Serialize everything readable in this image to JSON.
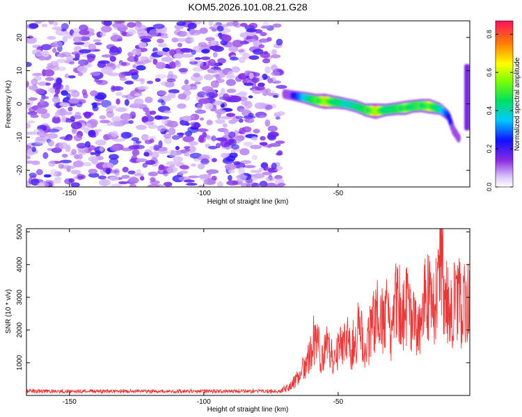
{
  "chart_data": [
    {
      "type": "heatmap",
      "title": "KOM5.2026.101.08.21.G28",
      "xlabel": "Height of straight line (km)",
      "ylabel": "Frequency (Hz)",
      "xlim": [
        -166,
        -1
      ],
      "ylim": [
        -25,
        25
      ],
      "x_ticks": [
        -150,
        -100,
        -50
      ],
      "y_ticks": [
        -20,
        -10,
        0,
        10,
        20
      ],
      "colorbar": {
        "label": "Normalized spectral amplitude",
        "range": [
          0,
          0.87
        ],
        "ticks": [
          "0.0",
          "0.2",
          "0.4",
          "0.6",
          "0.8"
        ],
        "tick_values": [
          0.0,
          0.2,
          0.4,
          0.6,
          0.8
        ]
      },
      "noise_region": {
        "x_range": [
          -166,
          -71
        ],
        "freq_range": [
          -25,
          25
        ],
        "amplitude_range": [
          0.05,
          0.22
        ]
      },
      "signal_track": {
        "points": [
          {
            "x": -70,
            "f": 3.0,
            "a": 0.2
          },
          {
            "x": -66,
            "f": 2.4,
            "a": 0.28
          },
          {
            "x": -62,
            "f": 1.8,
            "a": 0.45
          },
          {
            "x": -58,
            "f": 1.0,
            "a": 0.6
          },
          {
            "x": -55,
            "f": 0.8,
            "a": 0.82
          },
          {
            "x": -51,
            "f": 0.5,
            "a": 0.55
          },
          {
            "x": -47,
            "f": 0.0,
            "a": 0.45
          },
          {
            "x": -43,
            "f": -0.8,
            "a": 0.5
          },
          {
            "x": -40,
            "f": -1.8,
            "a": 0.55
          },
          {
            "x": -36,
            "f": -2.2,
            "a": 0.85
          },
          {
            "x": -32,
            "f": -1.8,
            "a": 0.5
          },
          {
            "x": -28,
            "f": -1.4,
            "a": 0.55
          },
          {
            "x": -25,
            "f": -1.2,
            "a": 0.7
          },
          {
            "x": -22,
            "f": -0.7,
            "a": 0.55
          },
          {
            "x": -19,
            "f": -0.5,
            "a": 0.6
          },
          {
            "x": -16,
            "f": -0.7,
            "a": 0.75
          },
          {
            "x": -12,
            "f": -1.5,
            "a": 0.45
          },
          {
            "x": -9,
            "f": -3.5,
            "a": 0.3
          },
          {
            "x": -7,
            "f": -8.0,
            "a": 0.22
          },
          {
            "x": -5,
            "f": -10.5,
            "a": 0.16
          }
        ],
        "edge_patch": {
          "x": -2,
          "freq_range": [
            -8,
            12
          ],
          "a": 0.15
        }
      }
    },
    {
      "type": "line",
      "xlabel": "Height of straight line (km)",
      "ylabel": "SNR (10 * v/v)",
      "xlim": [
        -166,
        -1
      ],
      "ylim": [
        0,
        5100
      ],
      "x_ticks": [
        -150,
        -100,
        -50
      ],
      "y_ticks": [
        1000,
        2000,
        3000,
        4000,
        5000
      ],
      "line_color": "#e8393a",
      "series": [
        {
          "name": "SNR",
          "x": [
            -166,
            -160,
            -150,
            -140,
            -130,
            -120,
            -110,
            -100,
            -90,
            -80,
            -72,
            -68,
            -65,
            -62,
            -60,
            -58,
            -56,
            -54,
            -52,
            -50,
            -47,
            -45,
            -42,
            -40,
            -38,
            -36,
            -34,
            -32,
            -30,
            -28,
            -26,
            -24,
            -22,
            -20,
            -18,
            -16,
            -14,
            -12,
            -10,
            -8,
            -6,
            -4,
            -2,
            -1
          ],
          "y": [
            120,
            110,
            115,
            110,
            120,
            115,
            110,
            110,
            120,
            115,
            160,
            300,
            600,
            1100,
            1500,
            2450,
            1200,
            1700,
            1300,
            1600,
            1900,
            1700,
            2400,
            1400,
            2200,
            3000,
            2500,
            3200,
            2000,
            3600,
            2800,
            3200,
            2600,
            2500,
            3300,
            3600,
            2900,
            5100,
            3400,
            2800,
            3600,
            3100,
            3500,
            2900
          ]
        }
      ],
      "noise_floor": 120
    }
  ]
}
